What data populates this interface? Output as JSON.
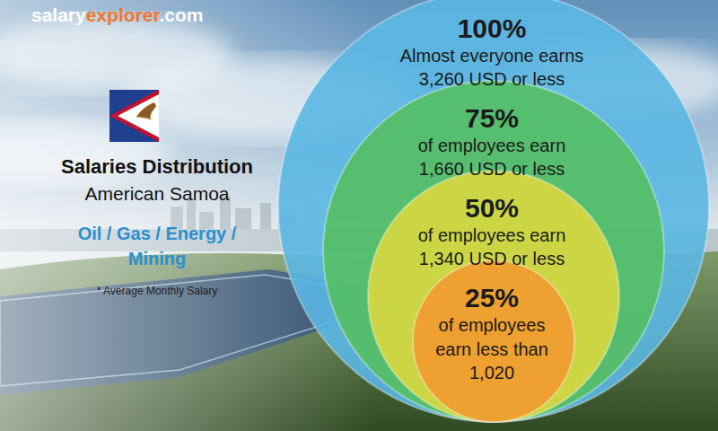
{
  "chart_data": {
    "type": "bubble",
    "source": [
      "salary",
      "explorer",
      ".com"
    ],
    "title": "Salaries Distribution",
    "subtitle": "American Samoa",
    "category": [
      "Oil / Gas / Energy /",
      "Mining"
    ],
    "note": "* Average Monthly Salary",
    "percentiles": [
      100,
      75,
      50,
      25
    ],
    "percentile_labels": [
      "100%",
      "75%",
      "50%",
      "25%"
    ],
    "descriptions": [
      [
        "Almost everyone earns"
      ],
      [
        "of employees earn"
      ],
      [
        "of employees earn"
      ],
      [
        "of employees",
        "earn less than"
      ]
    ],
    "values": [
      3260,
      1660,
      1340,
      1020
    ],
    "value_labels": [
      "3,260 USD or less",
      "1,660 USD or less",
      "1,340 USD or less",
      "1,020"
    ],
    "colors": [
      "#5bb7e3",
      "#55bf63",
      "#d9d840",
      "#f29a2e"
    ],
    "data_labels": true
  }
}
